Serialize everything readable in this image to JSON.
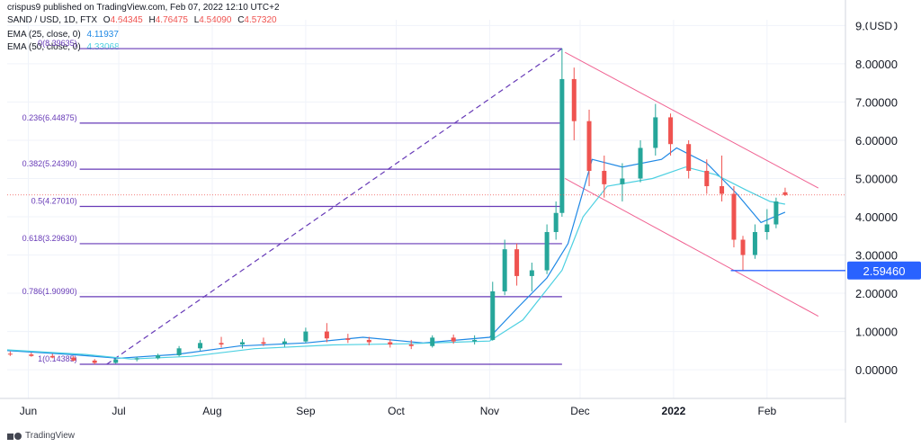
{
  "header": {
    "published": "crispus9 published on TradingView.com, Feb 07, 2022 12:10 UTC+2",
    "symbol": "SAND / USD, 1D, FTX",
    "ohlc": [
      {
        "label": "O",
        "value": "4.64345"
      },
      {
        "label": "H",
        "value": "4.76475"
      },
      {
        "label": "L",
        "value": "4.54090"
      },
      {
        "label": "C",
        "value": "4.57320"
      }
    ],
    "ema25": {
      "label": "EMA (25, close, 0)",
      "value": "4.11937"
    },
    "ema50": {
      "label": "EMA (50, close, 0)",
      "value": "4.33068"
    }
  },
  "brand": "TradingView",
  "currency": "USD",
  "colors": {
    "up": "#26a69a",
    "down": "#ef5350",
    "ema25": "#1e88e5",
    "ema50": "#4dd0e1",
    "fib": "#673ab7",
    "channel": "#f06292",
    "support": "#2962ff",
    "grid": "#f0f3fa"
  },
  "chart_data": {
    "type": "candlestick",
    "title": "",
    "xlabel": "",
    "ylabel": "",
    "ylim": [
      -0.75,
      9.15
    ],
    "y_ticks": [
      0.0,
      1.0,
      2.0,
      3.0,
      4.0,
      5.0,
      6.0,
      7.0,
      8.0,
      9.0
    ],
    "y_tick_labels": [
      "0.00000",
      "1.00000",
      "2.00000",
      "3.00000",
      "4.00000",
      "5.00000",
      "6.00000",
      "7.00000",
      "8.00000",
      "9.00000"
    ],
    "x_ticks": [
      {
        "label": "Jun",
        "date": "2021-06-01",
        "bold": false
      },
      {
        "label": "Jul",
        "date": "2021-07-01",
        "bold": false
      },
      {
        "label": "Aug",
        "date": "2021-08-01",
        "bold": false
      },
      {
        "label": "Sep",
        "date": "2021-09-01",
        "bold": false
      },
      {
        "label": "Oct",
        "date": "2021-10-01",
        "bold": false
      },
      {
        "label": "Nov",
        "date": "2021-11-01",
        "bold": false
      },
      {
        "label": "Dec",
        "date": "2021-12-01",
        "bold": false
      },
      {
        "label": "2022",
        "date": "2022-01-01",
        "bold": true
      },
      {
        "label": "Feb",
        "date": "2022-02-01",
        "bold": false
      }
    ],
    "x_range": [
      "2021-05-25",
      "2022-02-27"
    ],
    "grid": true,
    "price_line": 4.57,
    "candles_weekly_approx": [
      {
        "date": "2021-05-26",
        "open": 0.42,
        "high": 0.48,
        "low": 0.36,
        "close": 0.4
      },
      {
        "date": "2021-06-02",
        "open": 0.4,
        "high": 0.45,
        "low": 0.34,
        "close": 0.36
      },
      {
        "date": "2021-06-09",
        "open": 0.36,
        "high": 0.42,
        "low": 0.3,
        "close": 0.32
      },
      {
        "date": "2021-06-16",
        "open": 0.32,
        "high": 0.36,
        "low": 0.22,
        "close": 0.24
      },
      {
        "date": "2021-06-23",
        "open": 0.24,
        "high": 0.28,
        "low": 0.14,
        "close": 0.18
      },
      {
        "date": "2021-06-30",
        "open": 0.18,
        "high": 0.3,
        "low": 0.16,
        "close": 0.27
      },
      {
        "date": "2021-07-07",
        "open": 0.27,
        "high": 0.34,
        "low": 0.22,
        "close": 0.3
      },
      {
        "date": "2021-07-14",
        "open": 0.3,
        "high": 0.42,
        "low": 0.27,
        "close": 0.38
      },
      {
        "date": "2021-07-21",
        "open": 0.38,
        "high": 0.62,
        "low": 0.35,
        "close": 0.56
      },
      {
        "date": "2021-07-28",
        "open": 0.56,
        "high": 0.78,
        "low": 0.5,
        "close": 0.7
      },
      {
        "date": "2021-08-04",
        "open": 0.7,
        "high": 0.86,
        "low": 0.58,
        "close": 0.66
      },
      {
        "date": "2021-08-11",
        "open": 0.66,
        "high": 0.8,
        "low": 0.56,
        "close": 0.72
      },
      {
        "date": "2021-08-18",
        "open": 0.72,
        "high": 0.84,
        "low": 0.62,
        "close": 0.68
      },
      {
        "date": "2021-08-25",
        "open": 0.68,
        "high": 0.82,
        "low": 0.6,
        "close": 0.74
      },
      {
        "date": "2021-09-01",
        "open": 0.74,
        "high": 1.1,
        "low": 0.7,
        "close": 1.0
      },
      {
        "date": "2021-09-08",
        "open": 1.0,
        "high": 1.22,
        "low": 0.72,
        "close": 0.82
      },
      {
        "date": "2021-09-15",
        "open": 0.82,
        "high": 0.94,
        "low": 0.7,
        "close": 0.78
      },
      {
        "date": "2021-09-22",
        "open": 0.78,
        "high": 0.86,
        "low": 0.64,
        "close": 0.72
      },
      {
        "date": "2021-09-29",
        "open": 0.72,
        "high": 0.8,
        "low": 0.58,
        "close": 0.66
      },
      {
        "date": "2021-10-06",
        "open": 0.66,
        "high": 0.78,
        "low": 0.54,
        "close": 0.62
      },
      {
        "date": "2021-10-13",
        "open": 0.62,
        "high": 0.9,
        "low": 0.58,
        "close": 0.84
      },
      {
        "date": "2021-10-20",
        "open": 0.84,
        "high": 0.92,
        "low": 0.68,
        "close": 0.74
      },
      {
        "date": "2021-10-27",
        "open": 0.74,
        "high": 0.9,
        "low": 0.66,
        "close": 0.78
      },
      {
        "date": "2021-11-02",
        "open": 0.78,
        "high": 2.3,
        "low": 0.76,
        "close": 2.05
      },
      {
        "date": "2021-11-06",
        "open": 2.05,
        "high": 3.4,
        "low": 1.95,
        "close": 3.15
      },
      {
        "date": "2021-11-10",
        "open": 3.15,
        "high": 3.3,
        "low": 2.2,
        "close": 2.45
      },
      {
        "date": "2021-11-15",
        "open": 2.45,
        "high": 2.8,
        "low": 2.05,
        "close": 2.6
      },
      {
        "date": "2021-11-20",
        "open": 2.6,
        "high": 3.8,
        "low": 2.5,
        "close": 3.6
      },
      {
        "date": "2021-11-23",
        "open": 3.6,
        "high": 4.4,
        "low": 3.4,
        "close": 4.1
      },
      {
        "date": "2021-11-25",
        "open": 4.1,
        "high": 8.4,
        "low": 4.0,
        "close": 7.6
      },
      {
        "date": "2021-11-29",
        "open": 7.6,
        "high": 7.9,
        "low": 6.0,
        "close": 6.5
      },
      {
        "date": "2021-12-04",
        "open": 6.5,
        "high": 6.8,
        "low": 4.8,
        "close": 5.2
      },
      {
        "date": "2021-12-09",
        "open": 5.2,
        "high": 5.6,
        "low": 4.5,
        "close": 4.85
      },
      {
        "date": "2021-12-15",
        "open": 4.85,
        "high": 5.4,
        "low": 4.4,
        "close": 5.0
      },
      {
        "date": "2021-12-21",
        "open": 5.0,
        "high": 6.0,
        "low": 4.9,
        "close": 5.8
      },
      {
        "date": "2021-12-26",
        "open": 5.8,
        "high": 6.95,
        "low": 5.6,
        "close": 6.6
      },
      {
        "date": "2021-12-31",
        "open": 6.6,
        "high": 6.7,
        "low": 5.6,
        "close": 5.9
      },
      {
        "date": "2022-01-06",
        "open": 5.9,
        "high": 6.0,
        "low": 5.0,
        "close": 5.2
      },
      {
        "date": "2022-01-12",
        "open": 5.2,
        "high": 5.5,
        "low": 4.6,
        "close": 4.8
      },
      {
        "date": "2022-01-17",
        "open": 4.8,
        "high": 5.6,
        "low": 4.4,
        "close": 4.6
      },
      {
        "date": "2022-01-21",
        "open": 4.6,
        "high": 4.8,
        "low": 3.2,
        "close": 3.4
      },
      {
        "date": "2022-01-24",
        "open": 3.4,
        "high": 3.5,
        "low": 2.59,
        "close": 3.0
      },
      {
        "date": "2022-01-28",
        "open": 3.0,
        "high": 3.8,
        "low": 2.9,
        "close": 3.6
      },
      {
        "date": "2022-02-01",
        "open": 3.6,
        "high": 4.2,
        "low": 3.4,
        "close": 3.8
      },
      {
        "date": "2022-02-04",
        "open": 3.8,
        "high": 4.5,
        "low": 3.7,
        "close": 4.4
      },
      {
        "date": "2022-02-07",
        "open": 4.64,
        "high": 4.76,
        "low": 4.54,
        "close": 4.57
      }
    ],
    "series": [
      {
        "name": "EMA (25, close, 0)",
        "values": [
          {
            "date": "2021-05-25",
            "y": 0.5
          },
          {
            "date": "2021-06-15",
            "y": 0.4
          },
          {
            "date": "2021-07-01",
            "y": 0.3
          },
          {
            "date": "2021-07-20",
            "y": 0.4
          },
          {
            "date": "2021-08-10",
            "y": 0.62
          },
          {
            "date": "2021-09-01",
            "y": 0.7
          },
          {
            "date": "2021-09-20",
            "y": 0.85
          },
          {
            "date": "2021-10-10",
            "y": 0.7
          },
          {
            "date": "2021-11-01",
            "y": 0.85
          },
          {
            "date": "2021-11-10",
            "y": 1.6
          },
          {
            "date": "2021-11-20",
            "y": 2.4
          },
          {
            "date": "2021-11-27",
            "y": 3.3
          },
          {
            "date": "2021-12-05",
            "y": 5.5
          },
          {
            "date": "2021-12-15",
            "y": 5.3
          },
          {
            "date": "2021-12-28",
            "y": 5.5
          },
          {
            "date": "2022-01-02",
            "y": 5.8
          },
          {
            "date": "2022-01-12",
            "y": 5.4
          },
          {
            "date": "2022-01-22",
            "y": 4.6
          },
          {
            "date": "2022-01-30",
            "y": 3.85
          },
          {
            "date": "2022-02-07",
            "y": 4.12
          }
        ]
      },
      {
        "name": "EMA (50, close, 0)",
        "values": [
          {
            "date": "2021-05-25",
            "y": 0.52
          },
          {
            "date": "2021-06-20",
            "y": 0.4
          },
          {
            "date": "2021-07-05",
            "y": 0.28
          },
          {
            "date": "2021-07-25",
            "y": 0.35
          },
          {
            "date": "2021-08-15",
            "y": 0.55
          },
          {
            "date": "2021-09-10",
            "y": 0.65
          },
          {
            "date": "2021-10-05",
            "y": 0.68
          },
          {
            "date": "2021-11-01",
            "y": 0.75
          },
          {
            "date": "2021-11-12",
            "y": 1.3
          },
          {
            "date": "2021-11-25",
            "y": 2.6
          },
          {
            "date": "2021-12-02",
            "y": 4.0
          },
          {
            "date": "2021-12-10",
            "y": 4.8
          },
          {
            "date": "2021-12-25",
            "y": 5.0
          },
          {
            "date": "2022-01-05",
            "y": 5.3
          },
          {
            "date": "2022-01-15",
            "y": 5.1
          },
          {
            "date": "2022-01-25",
            "y": 4.7
          },
          {
            "date": "2022-02-02",
            "y": 4.4
          },
          {
            "date": "2022-02-07",
            "y": 4.33
          }
        ]
      }
    ],
    "fibonacci": {
      "x_start": "2021-06-27",
      "x_end": "2021-11-25",
      "levels": [
        {
          "ratio_label": "0",
          "price": 8.39635,
          "label": "0(8.39635)"
        },
        {
          "ratio_label": "0.236",
          "price": 6.44875,
          "label": "0.236(6.44875)"
        },
        {
          "ratio_label": "0.382",
          "price": 5.2439,
          "label": "0.382(5.24390)"
        },
        {
          "ratio_label": "0.5",
          "price": 4.2701,
          "label": "0.5(4.27010)"
        },
        {
          "ratio_label": "0.618",
          "price": 3.2963,
          "label": "0.618(3.29630)"
        },
        {
          "ratio_label": "0.786",
          "price": 1.9099,
          "label": "0.786(1.90990)"
        },
        {
          "ratio_label": "1",
          "price": 0.14385,
          "label": "1(0.14385)"
        }
      ],
      "trend_line": [
        {
          "date": "2021-06-27",
          "y": 0.14385
        },
        {
          "date": "2021-11-25",
          "y": 8.39635
        }
      ]
    },
    "channel": [
      [
        {
          "date": "2021-11-26",
          "y": 8.3
        },
        {
          "date": "2022-02-18",
          "y": 4.75
        }
      ],
      [
        {
          "date": "2021-11-26",
          "y": 5.0
        },
        {
          "date": "2022-02-18",
          "y": 1.4
        }
      ]
    ],
    "support_line": {
      "y": 2.5946,
      "x_start": "2022-01-20",
      "label": "2.59460"
    }
  }
}
